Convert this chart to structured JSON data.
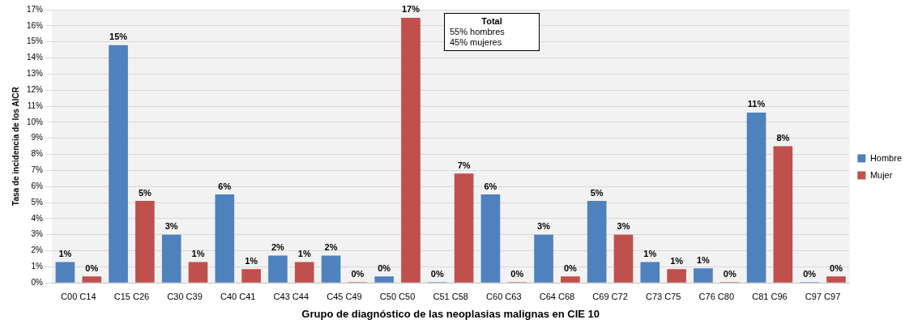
{
  "chart_data": {
    "type": "bar",
    "xlabel": "Grupo de diagnóstico de las neoplasias malignas en CIE 10",
    "ylabel": "Tasa de incidencia de los AICR",
    "categories": [
      "C00 C14",
      "C15 C26",
      "C30 C39",
      "C40 C41",
      "C43 C44",
      "C45 C49",
      "C50 C50",
      "C51 C58",
      "C60 C63",
      "C64 C68",
      "C69 C72",
      "C73 C75",
      "C76 C80",
      "C81 C96",
      "C97 C97"
    ],
    "series": [
      {
        "name": "Hombre",
        "color": "#4f81bd",
        "values": [
          1.3,
          14.8,
          3.0,
          5.5,
          1.7,
          1.7,
          0.4,
          0.05,
          5.5,
          3.0,
          5.1,
          1.3,
          0.9,
          10.6,
          0.05
        ],
        "value_labels": [
          "1%",
          "15%",
          "3%",
          "6%",
          "2%",
          "2%",
          "0%",
          "0%",
          "6%",
          "3%",
          "5%",
          "1%",
          "1%",
          "11%",
          "0%"
        ]
      },
      {
        "name": "Mujer",
        "color": "#c0504d",
        "values": [
          0.4,
          5.1,
          1.3,
          0.85,
          1.3,
          0.05,
          16.5,
          6.8,
          0.05,
          0.4,
          3.0,
          0.85,
          0.05,
          8.5,
          0.4
        ],
        "value_labels": [
          "0%",
          "5%",
          "1%",
          "1%",
          "1%",
          "0%",
          "17%",
          "7%",
          "0%",
          "0%",
          "3%",
          "1%",
          "0%",
          "8%",
          "0%"
        ]
      }
    ],
    "ylim": [
      0,
      17
    ],
    "yticks": [
      {
        "value": 0,
        "label": "0%"
      },
      {
        "value": 1,
        "label": "1%"
      },
      {
        "value": 2,
        "label": "2%"
      },
      {
        "value": 3,
        "label": "3%"
      },
      {
        "value": 4,
        "label": "4%"
      },
      {
        "value": 5,
        "label": "5%"
      },
      {
        "value": 6,
        "label": "6%"
      },
      {
        "value": 7,
        "label": "7%"
      },
      {
        "value": 8,
        "label": "8%"
      },
      {
        "value": 9,
        "label": "9%"
      },
      {
        "value": 10,
        "label": "10%"
      },
      {
        "value": 11,
        "label": "11%"
      },
      {
        "value": 12,
        "label": "12%"
      },
      {
        "value": 13,
        "label": "13%"
      },
      {
        "value": 14,
        "label": "14%"
      },
      {
        "value": 15,
        "label": "15%"
      },
      {
        "value": 16,
        "label": "16%"
      },
      {
        "value": 17,
        "label": "17%"
      }
    ],
    "annotations": [
      "Total",
      "55% hombres",
      "45% mujeres"
    ],
    "grid": "y",
    "legend": "right"
  }
}
